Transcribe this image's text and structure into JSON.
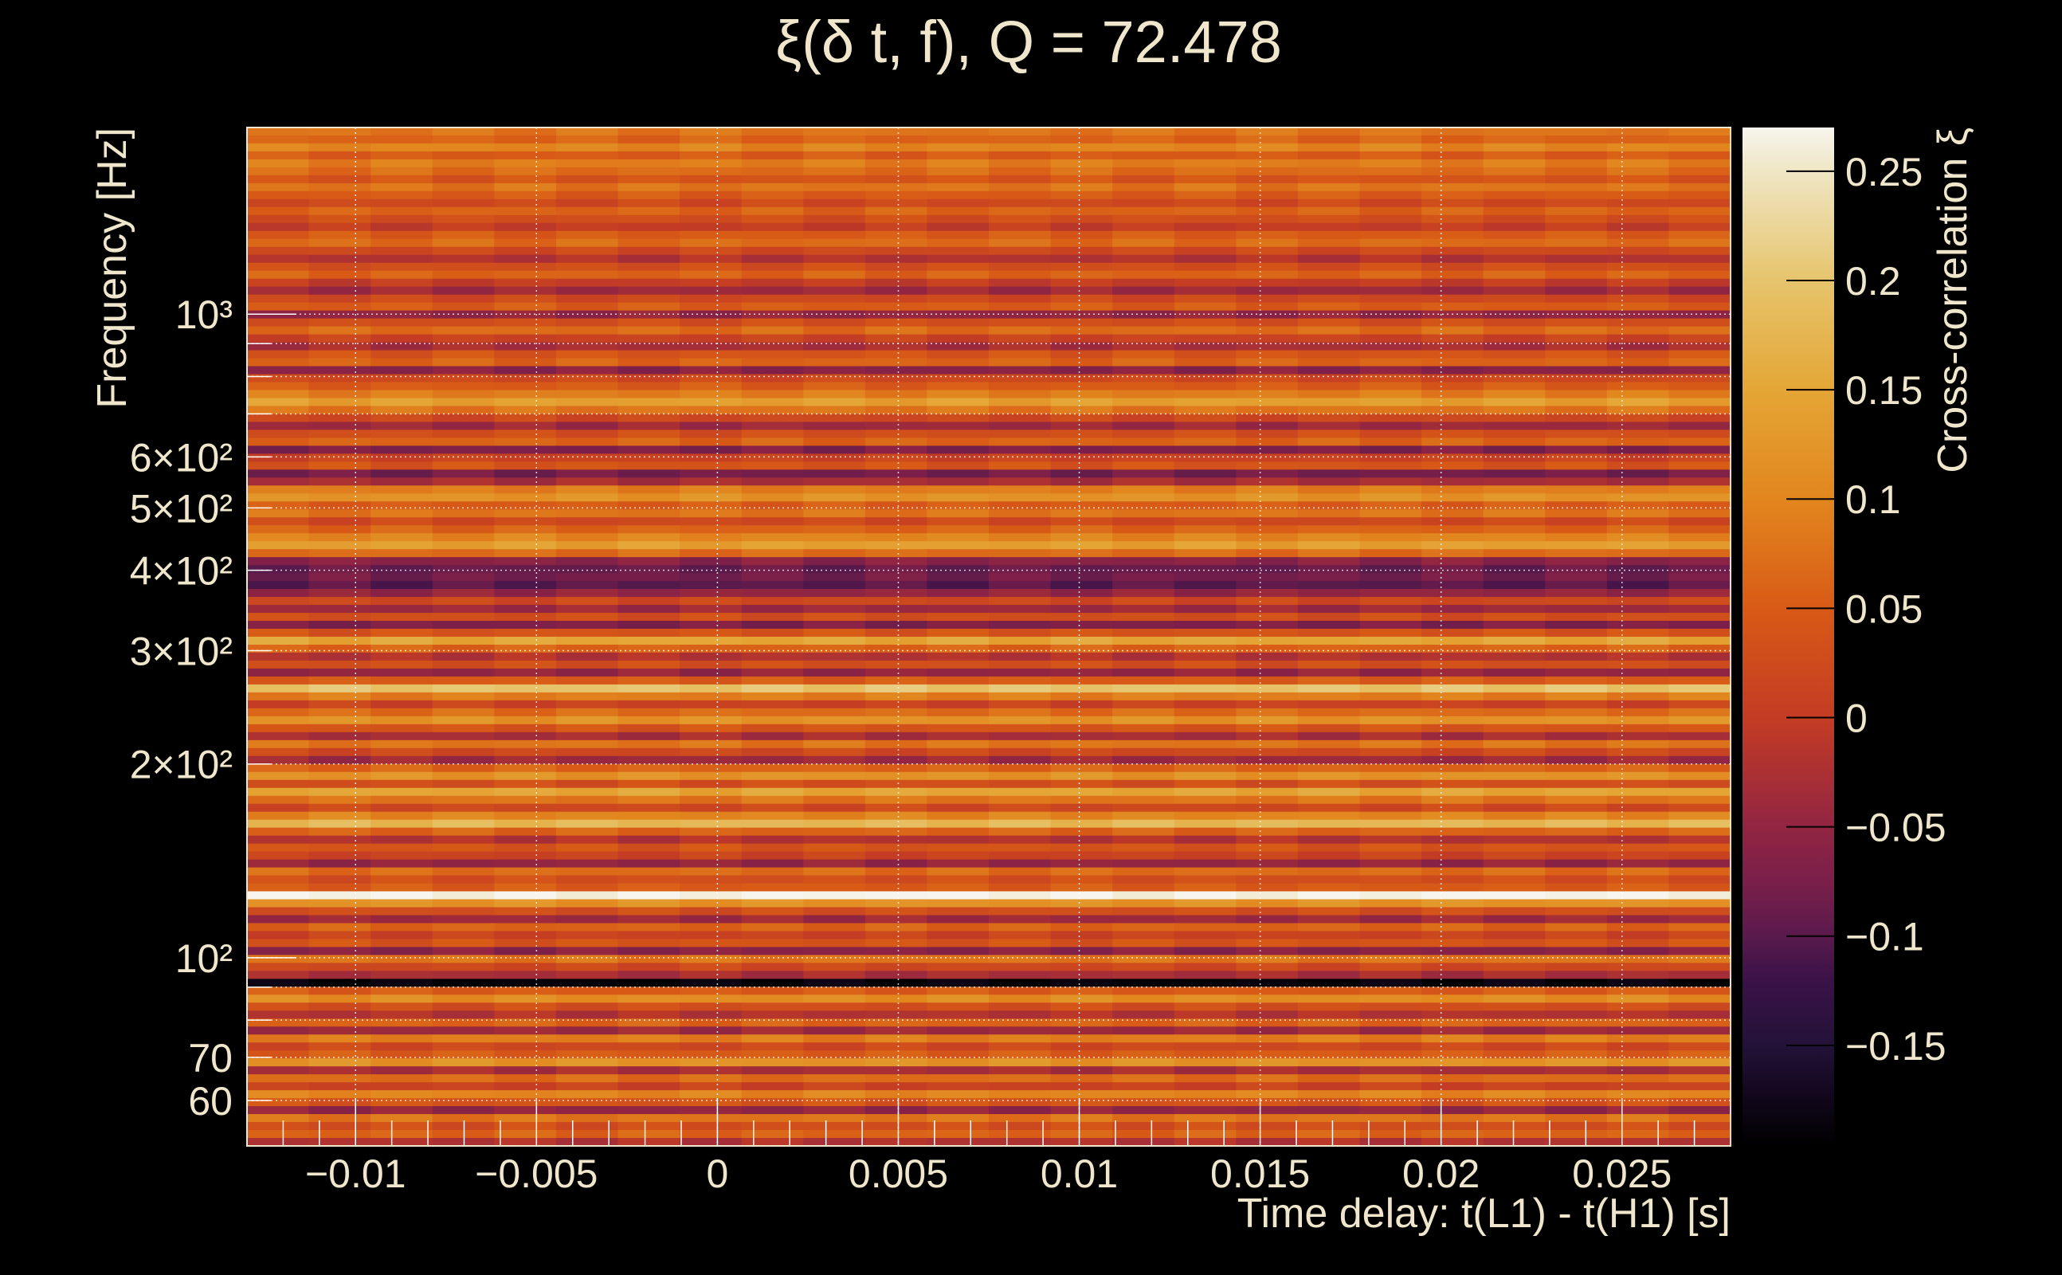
{
  "chart_data": {
    "type": "heatmap",
    "title": "ξ(δ t, f), Q = 72.478",
    "xlabel": "Time delay: t(L1) - t(H1) [s]",
    "ylabel": "Frequency [Hz]",
    "colorbar_label": "Cross-correlation ξ",
    "xlim": [
      -0.013,
      0.028
    ],
    "ylim": [
      51,
      1950
    ],
    "yscale": "log",
    "clim": [
      -0.196,
      0.27
    ],
    "grid": true,
    "x_ticks": [
      {
        "value": -0.01,
        "label": "−0.01"
      },
      {
        "value": -0.005,
        "label": "−0.005"
      },
      {
        "value": 0,
        "label": "0"
      },
      {
        "value": 0.005,
        "label": "0.005"
      },
      {
        "value": 0.01,
        "label": "0.01"
      },
      {
        "value": 0.015,
        "label": "0.015"
      },
      {
        "value": 0.02,
        "label": "0.02"
      },
      {
        "value": 0.025,
        "label": "0.025"
      }
    ],
    "y_ticks": [
      {
        "value": 60,
        "label": "60"
      },
      {
        "value": 70,
        "label": "70"
      },
      {
        "value": 100,
        "label": "10²"
      },
      {
        "value": 200,
        "label": "2×10²"
      },
      {
        "value": 300,
        "label": "3×10²"
      },
      {
        "value": 400,
        "label": "4×10²"
      },
      {
        "value": 500,
        "label": "5×10²"
      },
      {
        "value": 600,
        "label": "6×10²"
      },
      {
        "value": 1000,
        "label": "10³"
      }
    ],
    "colorbar_ticks": [
      {
        "value": 0.25,
        "label": "0.25"
      },
      {
        "value": 0.2,
        "label": "0.2"
      },
      {
        "value": 0.15,
        "label": "0.15"
      },
      {
        "value": 0.1,
        "label": "0.1"
      },
      {
        "value": 0.05,
        "label": "0.05"
      },
      {
        "value": 0,
        "label": "0"
      },
      {
        "value": -0.05,
        "label": "−0.05"
      },
      {
        "value": -0.1,
        "label": "−0.1"
      },
      {
        "value": -0.15,
        "label": "−0.15"
      }
    ],
    "colormap": [
      [
        -0.196,
        "#000000"
      ],
      [
        -0.17,
        "#140820"
      ],
      [
        -0.15,
        "#231238"
      ],
      [
        -0.12,
        "#3a1248"
      ],
      [
        -0.1,
        "#5a1a4c"
      ],
      [
        -0.075,
        "#7a1f4a"
      ],
      [
        -0.05,
        "#922542"
      ],
      [
        0,
        "#c43c24"
      ],
      [
        0.05,
        "#d85a16"
      ],
      [
        0.1,
        "#e2861e"
      ],
      [
        0.15,
        "#e4a636"
      ],
      [
        0.2,
        "#e6c46c"
      ],
      [
        0.25,
        "#efe6c4"
      ],
      [
        0.27,
        "#f7f5ee"
      ]
    ],
    "rows_top_to_bottom": [
      0.08,
      0.06,
      0.1,
      0.05,
      0.09,
      0.07,
      0.04,
      0.08,
      0.05,
      0.02,
      0.06,
      0.03,
      0.0,
      0.05,
      0.07,
      0.02,
      -0.02,
      0.03,
      0.06,
      0.0,
      -0.04,
      0.02,
      0.05,
      -0.05,
      0.03,
      0.07,
      0.01,
      -0.03,
      0.04,
      0.06,
      -0.06,
      0.02,
      0.05,
      0.09,
      0.14,
      0.08,
      0.02,
      -0.04,
      0.03,
      0.06,
      -0.07,
      0.01,
      0.04,
      -0.08,
      -0.03,
      0.09,
      0.12,
      0.05,
      0.08,
      0.02,
      0.06,
      0.1,
      0.14,
      0.07,
      -0.06,
      -0.09,
      -0.08,
      -0.1,
      -0.05,
      0.02,
      -0.04,
      0.03,
      -0.07,
      0.04,
      0.15,
      0.06,
      -0.02,
      0.03,
      -0.05,
      0.05,
      0.2,
      0.09,
      0.01,
      0.07,
      0.12,
      0.04,
      -0.03,
      0.08,
      0.02,
      -0.04,
      0.06,
      0.12,
      0.03,
      0.15,
      0.08,
      0.02,
      0.1,
      0.18,
      0.06,
      -0.02,
      0.04,
      0.01,
      -0.05,
      0.07,
      0.03,
      0.05,
      0.27,
      0.12,
      0.03,
      -0.04,
      0.06,
      0.01,
      0.04,
      -0.06,
      0.08,
      0.02,
      -0.03,
      -0.19,
      0.05,
      0.11,
      0.03,
      -0.02,
      0.06,
      -0.04,
      0.09,
      0.02,
      0.05,
      0.12,
      -0.03,
      0.07,
      0.01,
      0.1,
      0.04,
      -0.05,
      0.08,
      0.03,
      0.06,
      -0.02
    ]
  }
}
